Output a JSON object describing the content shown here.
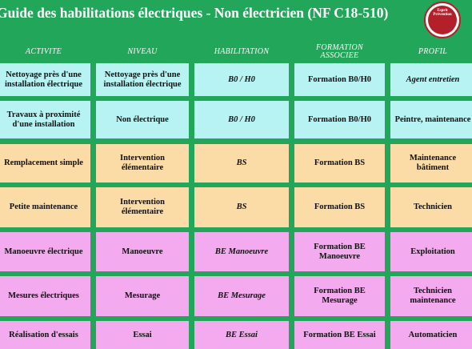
{
  "header": {
    "title": "Guide des habilitations électriques - Non électricien (NF C18-510)",
    "logo": "Esprit Prévention"
  },
  "table": {
    "columns": [
      "ACTIVITE",
      "NIVEAU",
      "HABILITATION",
      "FORMATION ASSOCIEE",
      "PROFIL"
    ],
    "rows": [
      [
        "Nettoyage près d'une installation électrique",
        "Nettoyage près d'une installation électrique",
        "B0 / H0",
        "Formation B0/H0",
        "Agent entretien"
      ],
      [
        "Travaux à proximité d'une installation",
        "Non électrique",
        "B0 / H0",
        "Formation B0/H0",
        "Peintre, maintenance"
      ],
      [
        "Remplacement simple",
        "Intervention élémentaire",
        "BS",
        "Formation BS",
        "Maintenance bâtiment"
      ],
      [
        "Petite maintenance",
        "Intervention élémentaire",
        "BS",
        "Formation BS",
        "Technicien"
      ],
      [
        "Manoeuvre électrique",
        "Manoeuvre",
        "BE Manoeuvre",
        "Formation BE Manoeuvre",
        "Exploitation"
      ],
      [
        "Mesures électriques",
        "Mesurage",
        "BE Mesurage",
        "Formation BE Mesurage",
        "Technicien maintenance"
      ],
      [
        "Réalisation d'essais",
        "Essai",
        "BE Essai",
        "Formation BE Essai",
        "Automaticien"
      ]
    ]
  }
}
